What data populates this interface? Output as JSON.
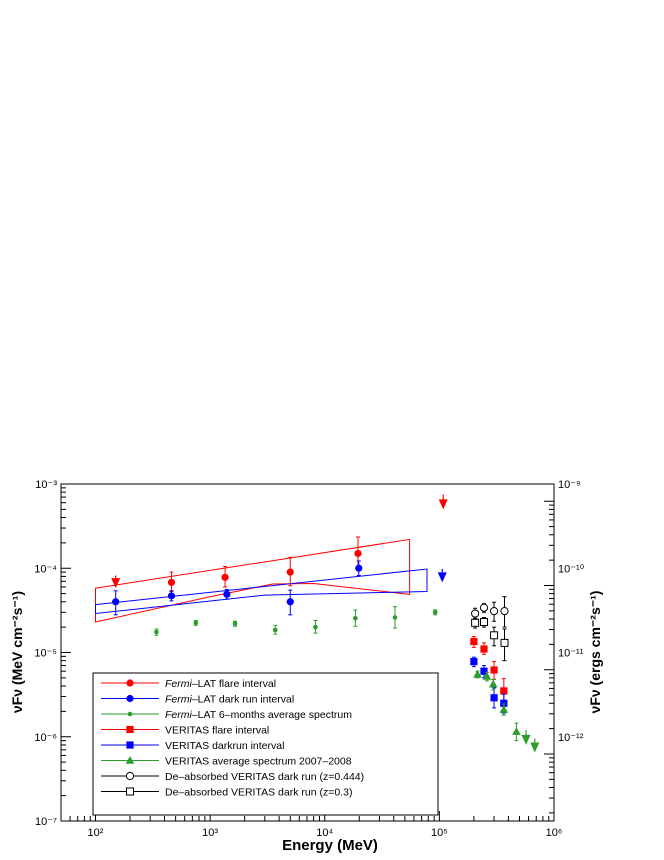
{
  "chart_data": {
    "type": "scatter",
    "title": "",
    "xlabel": "Energy (MeV)",
    "ylabel": "νFν (MeV cm⁻²s⁻¹)",
    "y2label": "νFν (ergs cm⁻²s⁻¹)",
    "x_scale": "log",
    "y_scale": "log",
    "xlim": [
      50,
      1000000
    ],
    "ylim": [
      1e-07,
      0.001
    ],
    "grid": false,
    "legend_position": "bottom-left",
    "x_ticks": [
      {
        "value": 100,
        "label": "10²"
      },
      {
        "value": 1000,
        "label": "10³"
      },
      {
        "value": 10000,
        "label": "10⁴"
      },
      {
        "value": 100000,
        "label": "10⁵"
      },
      {
        "value": 1000000,
        "label": "10⁶"
      }
    ],
    "y_ticks": [
      {
        "value": 1e-07,
        "label": "10⁻⁷"
      },
      {
        "value": 1e-06,
        "label": "10⁻⁶"
      },
      {
        "value": 1e-05,
        "label": "10⁻⁵"
      },
      {
        "value": 0.0001,
        "label": "10⁻⁴"
      },
      {
        "value": 0.001,
        "label": "10⁻³"
      }
    ],
    "y2_ticks": [
      {
        "value": 1.6e-12,
        "label": "10⁻¹²"
      },
      {
        "value": 1.6e-11,
        "label": "10⁻¹¹"
      },
      {
        "value": 1.6e-10,
        "label": "10⁻¹⁰"
      },
      {
        "value": 1.6e-09,
        "label": "10⁻⁹"
      }
    ],
    "series": [
      {
        "name_prefix": "Fermi",
        "name": "–LAT  flare interval",
        "name_italic": "flare",
        "color": "#ff0000",
        "marker": "circle-filled",
        "points": [
          {
            "x": 460,
            "y": 6.8e-05,
            "lo": 5.3e-05,
            "hi": 9e-05
          },
          {
            "x": 1350,
            "y": 7.8e-05,
            "lo": 6e-05,
            "hi": 0.000105
          },
          {
            "x": 5000,
            "y": 9e-05,
            "lo": 6.2e-05,
            "hi": 0.000135
          },
          {
            "x": 19500,
            "y": 0.00015,
            "lo": 0.0001,
            "hi": 0.000235
          }
        ]
      },
      {
        "name_prefix": "Fermi",
        "name": "–LAT  dark run interval",
        "name_italic": "dark run",
        "color": "#0000ff",
        "marker": "circle-filled",
        "points": [
          {
            "x": 150,
            "y": 4e-05,
            "lo": 2.8e-05,
            "hi": 5.4e-05
          },
          {
            "x": 460,
            "y": 4.7e-05,
            "lo": 4.1e-05,
            "hi": 5.4e-05
          },
          {
            "x": 1400,
            "y": 4.9e-05,
            "lo": 4.3e-05,
            "hi": 5.6e-05
          },
          {
            "x": 5000,
            "y": 4e-05,
            "lo": 2.8e-05,
            "hi": 5.5e-05
          },
          {
            "x": 19800,
            "y": 0.0001,
            "lo": 8.2e-05,
            "hi": 0.000122
          }
        ]
      },
      {
        "name_prefix": "Fermi",
        "name": "–LAT 6–months average spectrum",
        "name_italic": "",
        "color": "#2a9d2a",
        "marker": "circle-small",
        "points": [
          {
            "x": 340,
            "y": 1.75e-05,
            "lo": 1.6e-05,
            "hi": 1.9e-05
          },
          {
            "x": 750,
            "y": 2.25e-05,
            "lo": 2.1e-05,
            "hi": 2.4e-05
          },
          {
            "x": 1650,
            "y": 2.2e-05,
            "lo": 2.05e-05,
            "hi": 2.35e-05
          },
          {
            "x": 3700,
            "y": 1.85e-05,
            "lo": 1.65e-05,
            "hi": 2.1e-05
          },
          {
            "x": 8300,
            "y": 2e-05,
            "lo": 1.7e-05,
            "hi": 2.4e-05
          },
          {
            "x": 18500,
            "y": 2.55e-05,
            "lo": 2.05e-05,
            "hi": 3.2e-05
          },
          {
            "x": 41000,
            "y": 2.6e-05,
            "lo": 1.95e-05,
            "hi": 3.5e-05
          },
          {
            "x": 92000,
            "y": 3e-05,
            "lo": 2.8e-05,
            "hi": 3.2e-05
          }
        ]
      },
      {
        "name": "VERITAS flare interval",
        "name_italic": "flare",
        "color": "#ff0000",
        "marker": "square-filled",
        "points": [
          {
            "x": 200000,
            "y": 1.35e-05,
            "lo": 1.15e-05,
            "hi": 1.55e-05
          },
          {
            "x": 245000,
            "y": 1.1e-05,
            "lo": 9.5e-06,
            "hi": 1.3e-05
          },
          {
            "x": 300000,
            "y": 6.2e-06,
            "lo": 4.8e-06,
            "hi": 7.8e-06
          },
          {
            "x": 365000,
            "y": 3.5e-06,
            "lo": 2.3e-06,
            "hi": 4.9e-06
          }
        ]
      },
      {
        "name": "VERITAS darkrun interval",
        "name_italic": "darkrun",
        "color": "#0000ff",
        "marker": "square-filled",
        "points": [
          {
            "x": 200000,
            "y": 7.8e-06,
            "lo": 6.8e-06,
            "hi": 8.8e-06
          },
          {
            "x": 245000,
            "y": 6e-06,
            "lo": 5e-06,
            "hi": 7e-06
          },
          {
            "x": 300000,
            "y": 2.9e-06,
            "lo": 2.2e-06,
            "hi": 3.8e-06
          },
          {
            "x": 365000,
            "y": 2.5e-06,
            "lo": 1.9e-06,
            "hi": 3.2e-06
          }
        ]
      },
      {
        "name": "VERITAS average spectrum 2007–2008",
        "name_italic": "",
        "color": "#2a9d2a",
        "marker": "triangle-filled",
        "points": [
          {
            "x": 215000,
            "y": 5.5e-06,
            "lo": 5e-06,
            "hi": 6e-06
          },
          {
            "x": 260000,
            "y": 5.2e-06,
            "lo": 4.6e-06,
            "hi": 5.8e-06
          },
          {
            "x": 295000,
            "y": 4.2e-06,
            "lo": 3.6e-06,
            "hi": 4.8e-06
          },
          {
            "x": 365000,
            "y": 2.1e-06,
            "lo": 1.8e-06,
            "hi": 2.45e-06
          },
          {
            "x": 470000,
            "y": 1.15e-06,
            "lo": 9e-07,
            "hi": 1.45e-06
          }
        ]
      },
      {
        "name": "De–absorbed VERITAS dark run (z=0.444)",
        "name_italic": "dark run",
        "color": "#000000",
        "marker": "circle-open",
        "points": [
          {
            "x": 205000,
            "y": 2.9e-05,
            "lo": 2.5e-05,
            "hi": 3.35e-05
          },
          {
            "x": 245000,
            "y": 3.4e-05,
            "lo": 3e-05,
            "hi": 3.8e-05
          },
          {
            "x": 300000,
            "y": 3.1e-05,
            "lo": 2.35e-05,
            "hi": 3.95e-05
          },
          {
            "x": 370000,
            "y": 3.1e-05,
            "lo": 2e-05,
            "hi": 4.6e-05
          }
        ]
      },
      {
        "name": "De–absorbed VERITAS dark run (z=0.3)",
        "name_italic": "dark run",
        "color": "#000000",
        "marker": "square-open",
        "points": [
          {
            "x": 205000,
            "y": 2.25e-05,
            "lo": 1.95e-05,
            "hi": 2.55e-05
          },
          {
            "x": 245000,
            "y": 2.3e-05,
            "lo": 2e-05,
            "hi": 2.6e-05
          },
          {
            "x": 300000,
            "y": 1.6e-05,
            "lo": 1.2e-05,
            "hi": 2e-05
          },
          {
            "x": 370000,
            "y": 1.3e-05,
            "lo": 8e-06,
            "hi": 1.9e-05
          }
        ]
      }
    ],
    "upper_limits": [
      {
        "color": "#ff0000",
        "x": 150,
        "y": 5.8e-05,
        "from": 8.2e-05
      },
      {
        "color": "#ff0000",
        "x": 108000,
        "y": 0.0005,
        "from": 0.00075
      },
      {
        "color": "#0000ff",
        "x": 106000,
        "y": 6.8e-05,
        "from": 9.8e-05
      },
      {
        "color": "#2a9d2a",
        "x": 570000,
        "y": 8e-07,
        "from": 1.2e-06
      },
      {
        "color": "#2a9d2a",
        "x": 680000,
        "y": 6.5e-07,
        "from": 9.5e-07
      }
    ],
    "butterflies": [
      {
        "color": "#ff0000",
        "upper": [
          [
            100,
            5.8e-05
          ],
          [
            55000,
            0.00022
          ]
        ],
        "lower": [
          [
            100,
            2.3e-05
          ],
          [
            1000,
            4.6e-05
          ],
          [
            3500,
            6.5e-05
          ],
          [
            8000,
            6.6e-05
          ],
          [
            55000,
            4.9e-05
          ]
        ]
      },
      {
        "color": "#0000ff",
        "upper": [
          [
            100,
            3.7e-05
          ],
          [
            78000,
            9.8e-05
          ]
        ],
        "lower": [
          [
            100,
            2.9e-05
          ],
          [
            3000,
            4.8e-05
          ],
          [
            78000,
            5.3e-05
          ]
        ]
      }
    ]
  }
}
